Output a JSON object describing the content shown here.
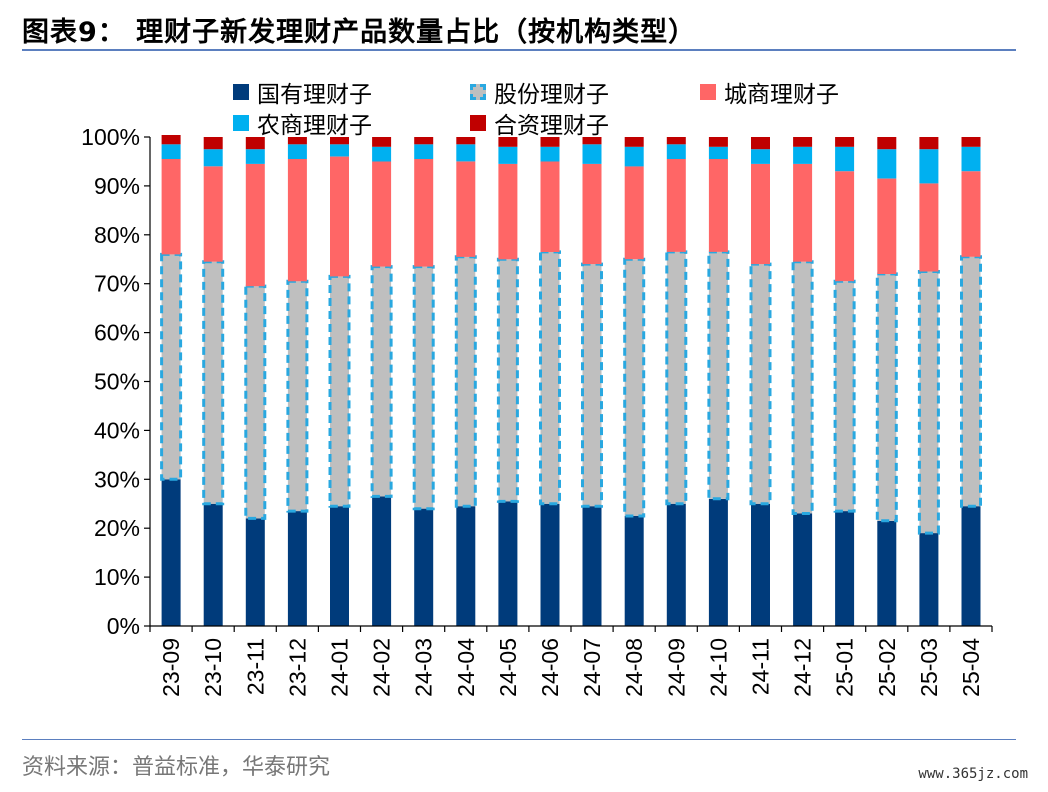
{
  "header": {
    "title": "图表9：  理财子新发理财产品数量占比（按机构类型）"
  },
  "footer": {
    "source": "资料来源：普益标准，华泰研究",
    "watermark": "www.365jz.com"
  },
  "chart_data": {
    "type": "bar",
    "stacked": true,
    "title": "",
    "xlabel": "",
    "ylabel": "",
    "ylim": [
      0,
      1
    ],
    "yticks": [
      "0%",
      "10%",
      "20%",
      "30%",
      "40%",
      "50%",
      "60%",
      "70%",
      "80%",
      "90%",
      "100%"
    ],
    "grid": false,
    "legend_position": "top",
    "categories": [
      "23-09",
      "23-10",
      "23-11",
      "23-12",
      "24-01",
      "24-02",
      "24-03",
      "24-04",
      "24-05",
      "24-06",
      "24-07",
      "24-08",
      "24-09",
      "24-10",
      "24-11",
      "24-12",
      "25-01",
      "25-02",
      "25-03",
      "25-04"
    ],
    "series": [
      {
        "name": "国有理财子",
        "color": "#003b7b",
        "style": "solid",
        "values": [
          0.3,
          0.25,
          0.22,
          0.235,
          0.245,
          0.265,
          0.24,
          0.245,
          0.255,
          0.25,
          0.245,
          0.225,
          0.25,
          0.26,
          0.25,
          0.23,
          0.235,
          0.215,
          0.19,
          0.245
        ]
      },
      {
        "name": "股份理财子",
        "color": "#bfbfbf",
        "edge_color": "#29a8e0",
        "style": "dashed",
        "values": [
          0.46,
          0.495,
          0.475,
          0.47,
          0.47,
          0.47,
          0.495,
          0.51,
          0.495,
          0.515,
          0.495,
          0.525,
          0.515,
          0.505,
          0.49,
          0.515,
          0.47,
          0.505,
          0.535,
          0.51
        ]
      },
      {
        "name": "城商理财子",
        "color": "#ff6666",
        "style": "solid",
        "values": [
          0.195,
          0.195,
          0.25,
          0.25,
          0.245,
          0.215,
          0.22,
          0.195,
          0.195,
          0.185,
          0.205,
          0.19,
          0.19,
          0.19,
          0.205,
          0.2,
          0.225,
          0.195,
          0.18,
          0.175
        ]
      },
      {
        "name": "农商理财子",
        "color": "#00b0f0",
        "style": "solid",
        "values": [
          0.03,
          0.035,
          0.03,
          0.03,
          0.025,
          0.03,
          0.03,
          0.035,
          0.035,
          0.03,
          0.04,
          0.04,
          0.03,
          0.025,
          0.03,
          0.035,
          0.05,
          0.06,
          0.07,
          0.05
        ]
      },
      {
        "name": "合资理财子",
        "color": "#c00000",
        "style": "solid",
        "values": [
          0.019,
          0.025,
          0.025,
          0.015,
          0.015,
          0.02,
          0.015,
          0.015,
          0.02,
          0.02,
          0.015,
          0.02,
          0.015,
          0.02,
          0.025,
          0.02,
          0.02,
          0.025,
          0.025,
          0.02
        ]
      }
    ]
  }
}
